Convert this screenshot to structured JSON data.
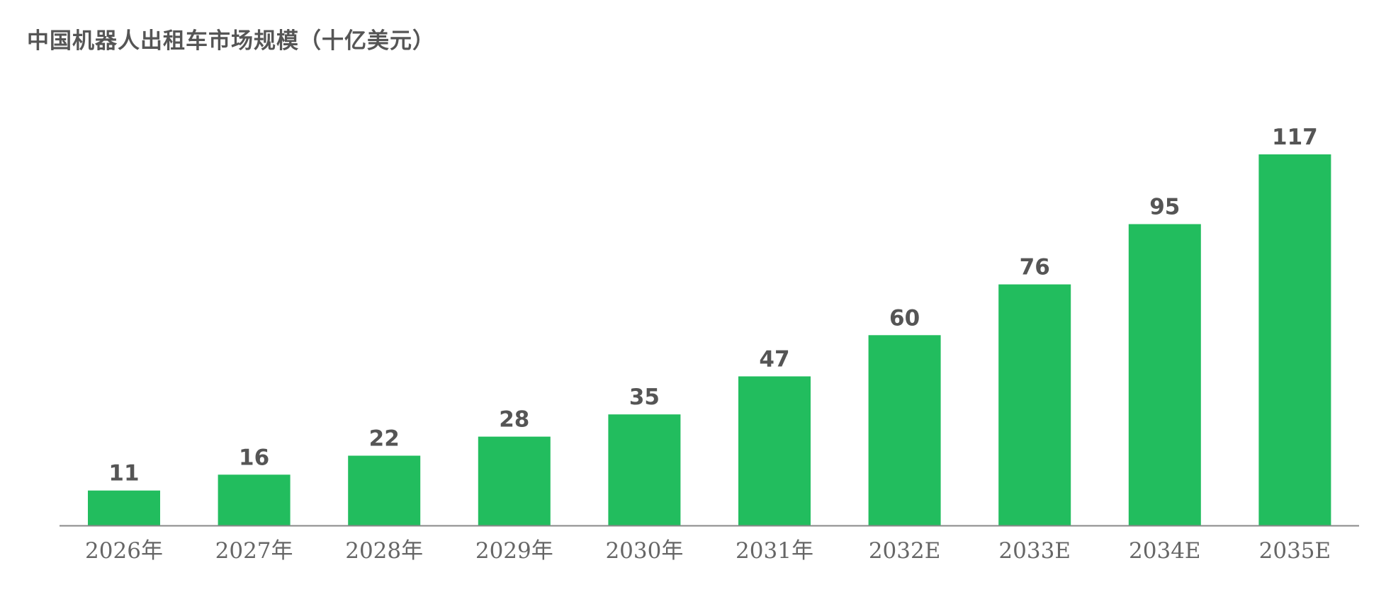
{
  "chart_data": {
    "type": "bar",
    "title": "中国机器人出租车市场规模（十亿美元）",
    "categories": [
      "2026年",
      "2027年",
      "2028年",
      "2029年",
      "2030年",
      "2031年",
      "2032E",
      "2033E",
      "2034E",
      "2035E"
    ],
    "values": [
      11,
      16,
      22,
      28,
      35,
      47,
      60,
      76,
      95,
      117
    ],
    "xlabel": "",
    "ylabel": "",
    "ylim": [
      0,
      117
    ],
    "grid": false,
    "legend": "none",
    "show_value_labels": true,
    "bar_color": "#22BD5E",
    "axis_color": "#888888"
  }
}
